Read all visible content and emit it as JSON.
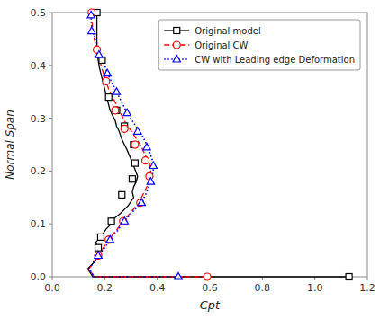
{
  "chart_data": {
    "type": "line",
    "xlabel": "Cpt",
    "ylabel": "Normal Span",
    "xlim": [
      0.0,
      1.2
    ],
    "ylim": [
      0.0,
      0.5
    ],
    "xticks": [
      {
        "value": 0.0,
        "label": "0.0"
      },
      0.2,
      0.4,
      0.6,
      0.8,
      {
        "value": 1.0,
        "label": "1.0"
      },
      1.2
    ],
    "yticks": [
      {
        "value": 0.0,
        "label": "0.0"
      },
      0.1,
      0.2,
      0.3,
      0.4,
      0.5
    ],
    "grid": false,
    "legend": "upper right",
    "series": [
      {
        "name": "Original model",
        "color": "black",
        "line_style": "solid",
        "marker": "square",
        "x": [
          1.13,
          0.155,
          0.135,
          0.155,
          0.175,
          0.175,
          0.165,
          0.185,
          0.205,
          0.225,
          0.235,
          0.26,
          0.29,
          0.31,
          0.305,
          0.31,
          0.32,
          0.325,
          0.31,
          0.285,
          0.275,
          0.265,
          0.255,
          0.245,
          0.24,
          0.23,
          0.22,
          0.215,
          0.205,
          0.2,
          0.195,
          0.19,
          0.185,
          0.18,
          0.175,
          0.17,
          0.17
        ],
        "values": [
          0.0,
          0.0,
          0.015,
          0.025,
          0.04,
          0.055,
          0.065,
          0.075,
          0.09,
          0.1,
          0.11,
          0.12,
          0.135,
          0.15,
          0.16,
          0.17,
          0.18,
          0.19,
          0.21,
          0.24,
          0.25,
          0.26,
          0.275,
          0.285,
          0.295,
          0.305,
          0.315,
          0.325,
          0.345,
          0.355,
          0.365,
          0.375,
          0.385,
          0.395,
          0.41,
          0.43,
          0.5
        ],
        "marker_x": [
          1.13,
          0.175,
          0.185,
          0.225,
          0.265,
          0.305,
          0.315,
          0.31,
          0.275,
          0.245,
          0.215,
          0.19,
          0.17
        ],
        "marker_values": [
          0.0,
          0.055,
          0.075,
          0.105,
          0.155,
          0.185,
          0.215,
          0.25,
          0.285,
          0.315,
          0.34,
          0.41,
          0.5
        ]
      },
      {
        "name": "Original CW",
        "color": "red",
        "line_style": "dashed",
        "marker": "circle",
        "x": [
          0.59,
          0.16,
          0.14,
          0.155,
          0.175,
          0.195,
          0.215,
          0.24,
          0.27,
          0.305,
          0.33,
          0.35,
          0.37,
          0.375,
          0.37,
          0.355,
          0.335,
          0.315,
          0.295,
          0.275,
          0.26,
          0.245,
          0.23,
          0.215,
          0.205,
          0.195,
          0.18,
          0.17,
          0.16,
          0.155,
          0.15,
          0.15,
          0.15
        ],
        "values": [
          0.0,
          0.0,
          0.015,
          0.025,
          0.04,
          0.055,
          0.07,
          0.085,
          0.105,
          0.125,
          0.14,
          0.16,
          0.18,
          0.2,
          0.215,
          0.23,
          0.25,
          0.265,
          0.28,
          0.295,
          0.31,
          0.325,
          0.34,
          0.355,
          0.37,
          0.385,
          0.41,
          0.43,
          0.45,
          0.47,
          0.485,
          0.5,
          0.5
        ],
        "marker_x": [
          0.59,
          0.175,
          0.215,
          0.27,
          0.335,
          0.37,
          0.355,
          0.315,
          0.275,
          0.24,
          0.205,
          0.17,
          0.15
        ],
        "marker_values": [
          0.0,
          0.04,
          0.07,
          0.105,
          0.14,
          0.19,
          0.22,
          0.25,
          0.28,
          0.315,
          0.37,
          0.43,
          0.5
        ]
      },
      {
        "name": "CW with Leading edge Deformation",
        "color": "blue",
        "line_style": "dotted",
        "marker": "triangle",
        "x": [
          0.48,
          0.16,
          0.14,
          0.155,
          0.175,
          0.2,
          0.22,
          0.245,
          0.275,
          0.31,
          0.34,
          0.36,
          0.375,
          0.385,
          0.385,
          0.375,
          0.36,
          0.345,
          0.325,
          0.305,
          0.285,
          0.27,
          0.255,
          0.24,
          0.225,
          0.21,
          0.2,
          0.188,
          0.178,
          0.168,
          0.158,
          0.15,
          0.148,
          0.148,
          0.148,
          0.148
        ],
        "values": [
          0.0,
          0.0,
          0.015,
          0.025,
          0.04,
          0.055,
          0.07,
          0.085,
          0.105,
          0.125,
          0.14,
          0.16,
          0.18,
          0.2,
          0.215,
          0.23,
          0.25,
          0.265,
          0.28,
          0.295,
          0.31,
          0.325,
          0.34,
          0.355,
          0.37,
          0.385,
          0.4,
          0.415,
          0.43,
          0.445,
          0.46,
          0.475,
          0.485,
          0.49,
          0.495,
          0.5
        ],
        "marker_x": [
          0.48,
          0.175,
          0.22,
          0.275,
          0.34,
          0.375,
          0.385,
          0.36,
          0.325,
          0.285,
          0.245,
          0.21,
          0.178,
          0.15,
          0.148
        ],
        "marker_values": [
          0.0,
          0.04,
          0.07,
          0.105,
          0.14,
          0.18,
          0.21,
          0.245,
          0.275,
          0.31,
          0.35,
          0.385,
          0.42,
          0.465,
          0.495
        ]
      }
    ]
  }
}
